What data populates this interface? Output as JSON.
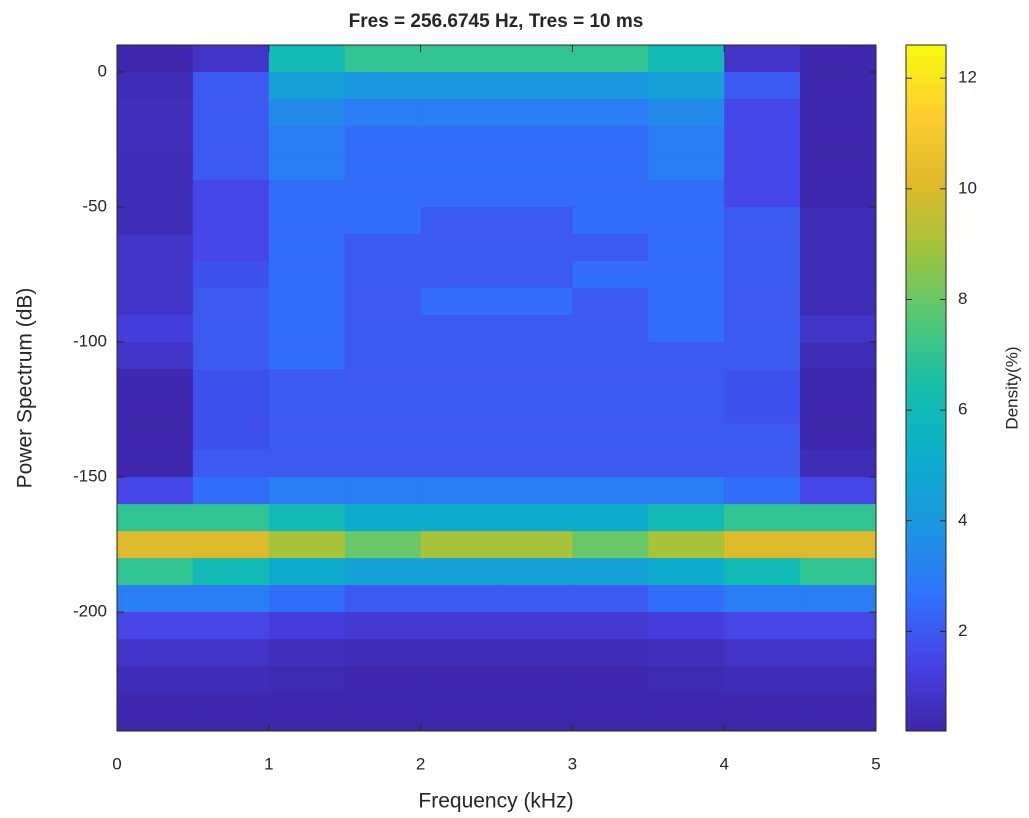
{
  "chart_data": {
    "type": "heatmap",
    "title": "Fres = 256.6745 Hz, Tres = 10 ms",
    "xlabel": "Frequency (kHz)",
    "ylabel": "Power Spectrum (dB)",
    "colorbar_label": "Density(%)",
    "xlim": [
      0,
      5
    ],
    "ylim": [
      -244,
      10
    ],
    "xticks": [
      0,
      1,
      2,
      3,
      4,
      5
    ],
    "yticks": [
      -200,
      -150,
      -100,
      -50,
      0
    ],
    "clim": [
      0.2,
      12.6
    ],
    "cticks": [
      2,
      4,
      6,
      8,
      10,
      12
    ],
    "colormap": [
      "#3e26a8",
      "#4643e7",
      "#2f74fa",
      "#1c96e0",
      "#0daecb",
      "#14beaa",
      "#52c878",
      "#a0c43c",
      "#e2b92a",
      "#fcce30",
      "#f9fb0e"
    ],
    "x_edges": [
      0,
      0.5,
      1,
      1.5,
      2,
      2.5,
      3,
      3.5,
      4,
      4.5,
      5
    ],
    "y_edges": [
      10,
      0,
      -10,
      -20,
      -30,
      -40,
      -50,
      -60,
      -70,
      -80,
      -90,
      -100,
      -110,
      -120,
      -130,
      -140,
      -150,
      -160,
      -170,
      -180,
      -190,
      -200,
      -210,
      -220,
      -230,
      -240
    ],
    "density": [
      [
        0.3,
        0.8,
        6,
        7,
        7,
        7,
        7,
        6,
        0.8,
        0.3
      ],
      [
        0.5,
        2,
        4.5,
        4,
        4,
        4,
        4,
        4.5,
        2,
        0.3
      ],
      [
        0.6,
        2,
        3.5,
        3,
        3,
        3,
        3,
        3.5,
        1.5,
        0.3
      ],
      [
        0.6,
        2,
        3,
        2.5,
        2.5,
        2.5,
        2.5,
        3,
        1.5,
        0.3
      ],
      [
        0.5,
        2,
        3,
        2.5,
        2.5,
        2.5,
        2.5,
        3,
        1.5,
        0.3
      ],
      [
        0.5,
        1.5,
        2.5,
        2.5,
        2.5,
        2.5,
        2.5,
        2.5,
        1.5,
        0.3
      ],
      [
        0.5,
        1.5,
        2.5,
        2.5,
        2,
        2,
        2.5,
        2.5,
        2,
        0.5
      ],
      [
        0.8,
        1.5,
        2.5,
        2,
        2,
        2,
        2,
        2.5,
        2,
        0.5
      ],
      [
        0.8,
        1.8,
        2.5,
        2,
        2,
        2,
        2.5,
        2.5,
        2,
        0.5
      ],
      [
        0.8,
        2,
        2.5,
        2,
        2.5,
        2.5,
        2,
        2.5,
        2,
        0.5
      ],
      [
        1.2,
        2,
        2.5,
        2,
        2,
        2,
        2,
        2.5,
        2,
        0.8
      ],
      [
        0.8,
        2,
        2.5,
        2,
        2,
        2,
        2,
        2,
        2,
        0.5
      ],
      [
        0.3,
        1.8,
        2,
        2,
        2,
        2,
        2,
        2,
        1.8,
        0.3
      ],
      [
        0.3,
        1.8,
        2,
        2,
        2,
        2,
        2,
        2,
        1.8,
        0.3
      ],
      [
        0.3,
        1.8,
        2,
        2,
        2,
        2,
        2,
        2,
        2,
        0.3
      ],
      [
        0.3,
        2,
        2,
        2,
        2,
        2,
        2,
        2,
        2,
        0.5
      ],
      [
        1.5,
        2.5,
        3,
        3,
        3,
        3,
        3,
        3,
        2.5,
        1.5
      ],
      [
        7,
        7,
        6,
        5,
        5,
        5,
        5,
        6,
        7,
        7
      ],
      [
        10,
        10,
        9,
        8,
        9,
        9,
        8,
        9,
        10,
        10
      ],
      [
        7,
        6,
        5,
        4.5,
        4.5,
        4.5,
        4.5,
        5,
        6,
        7
      ],
      [
        3,
        3,
        2.5,
        2,
        2,
        2,
        2,
        2.5,
        3,
        3
      ],
      [
        1.5,
        1.5,
        1.2,
        1,
        1,
        1,
        1,
        1.2,
        1.5,
        1.5
      ],
      [
        0.8,
        0.8,
        0.6,
        0.5,
        0.5,
        0.5,
        0.5,
        0.6,
        0.8,
        0.8
      ],
      [
        0.5,
        0.5,
        0.4,
        0.3,
        0.3,
        0.3,
        0.3,
        0.4,
        0.5,
        0.5
      ],
      [
        0.3,
        0.3,
        0.3,
        0.3,
        0.3,
        0.3,
        0.3,
        0.3,
        0.3,
        0.3
      ]
    ]
  }
}
